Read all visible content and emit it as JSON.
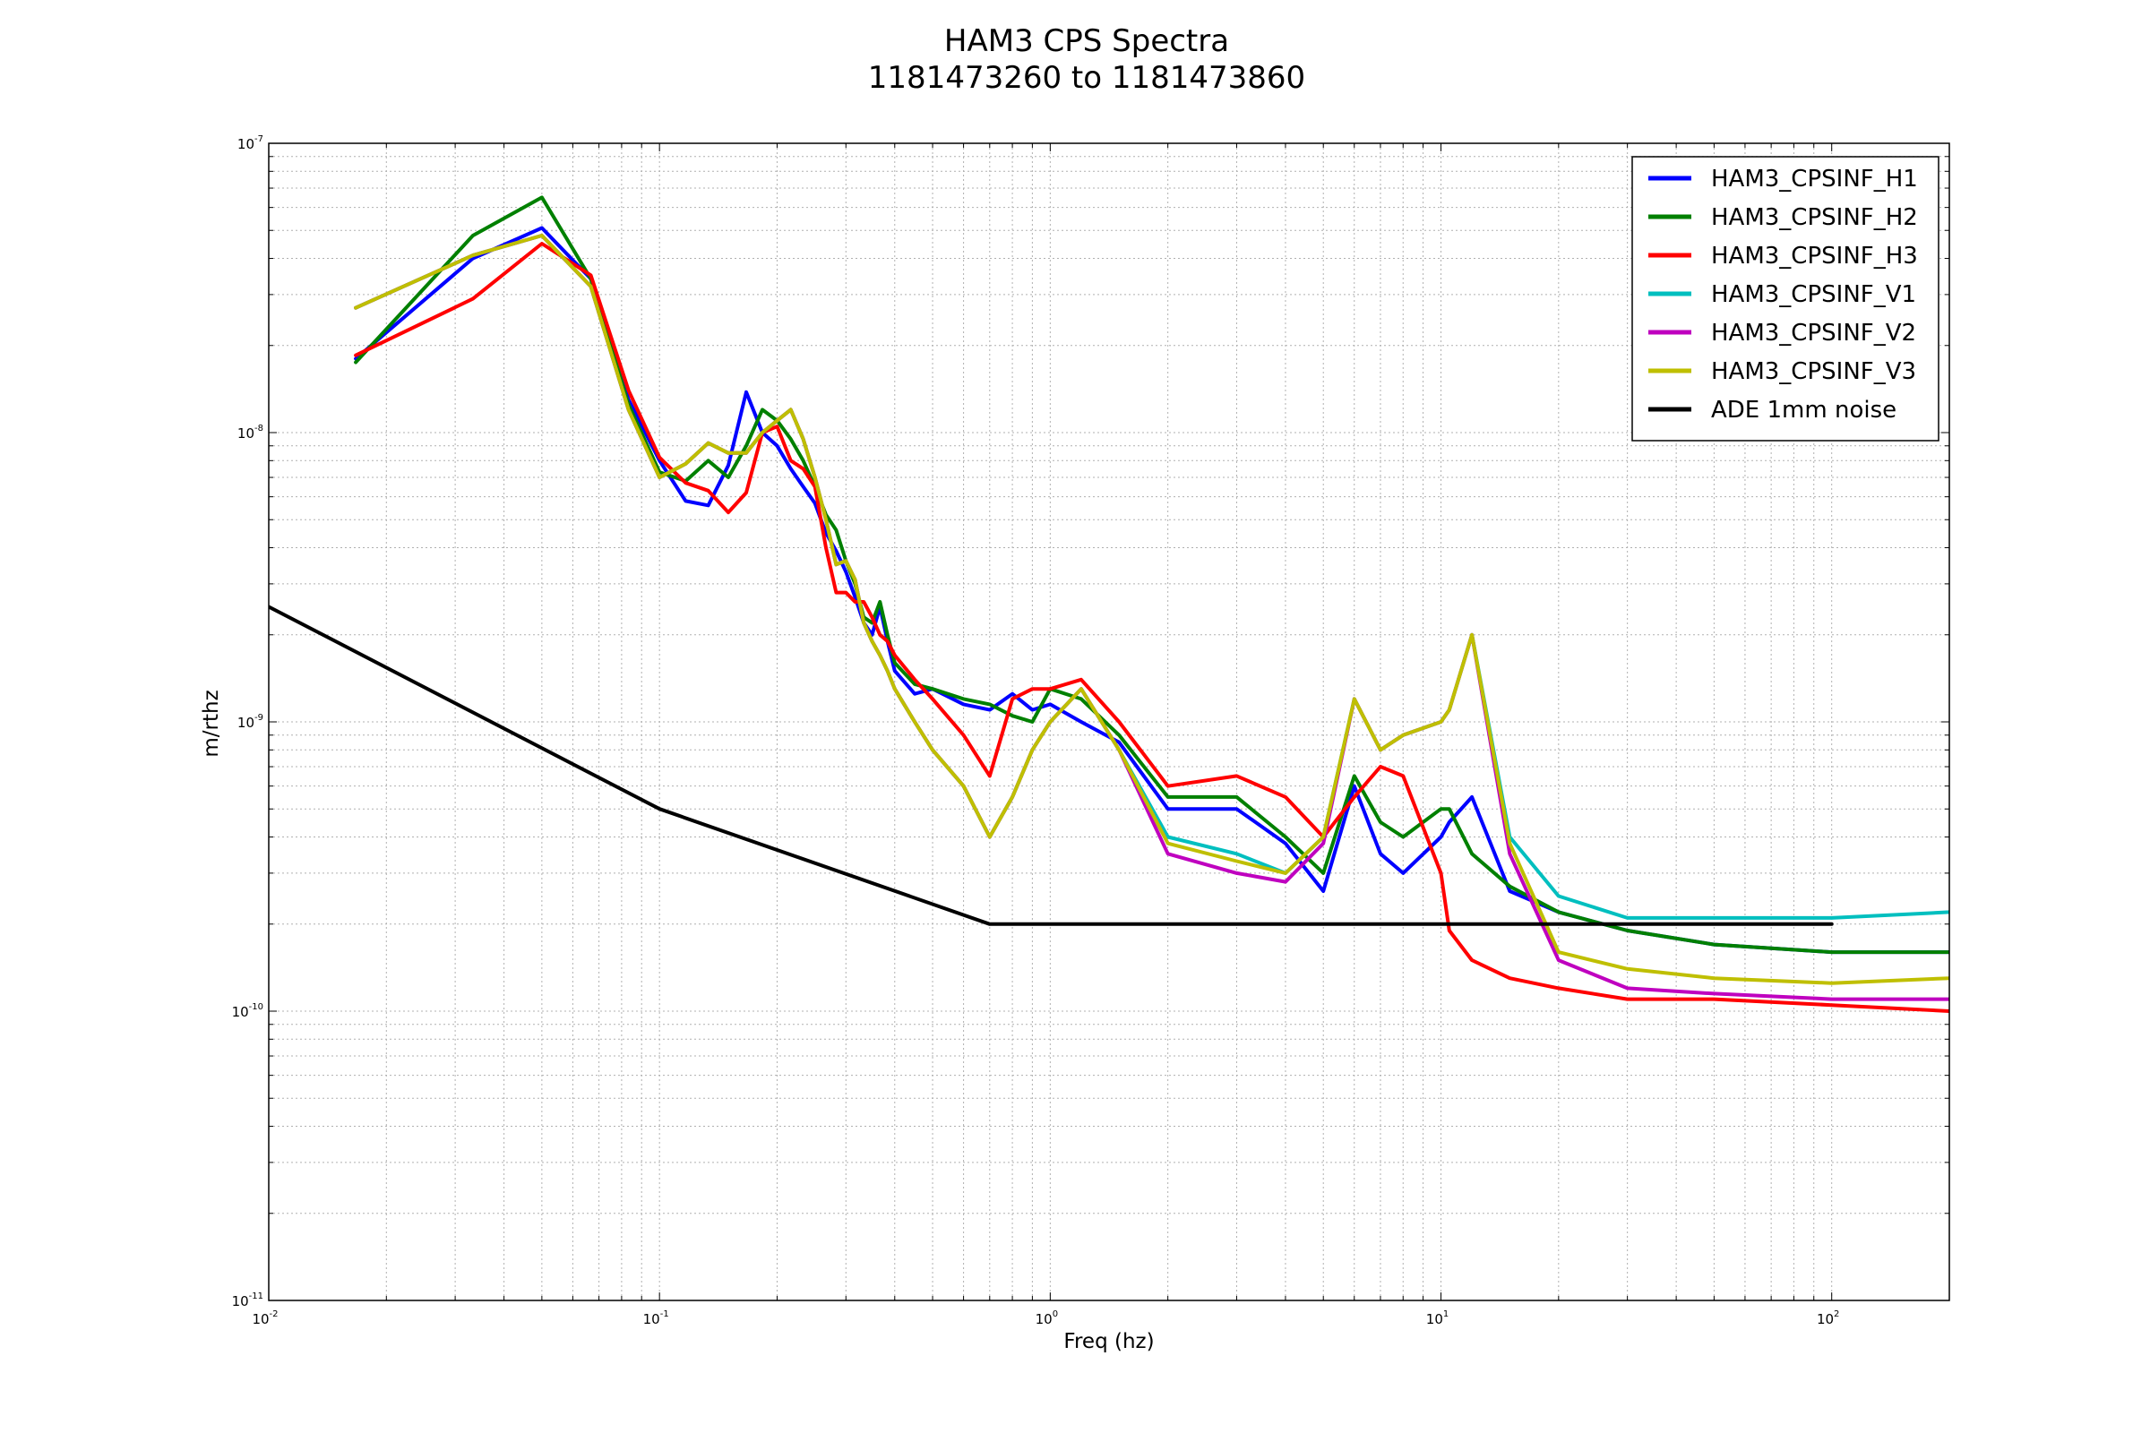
{
  "chart_data": {
    "type": "line",
    "title": "HAM3 CPS Spectra",
    "subtitle": "1181473260 to 1181473860",
    "xlabel": "Freq (hz)",
    "ylabel": "m/rthz",
    "xscale": "log",
    "yscale": "log",
    "xlim": [
      0.01,
      200
    ],
    "ylim": [
      1e-11,
      1e-07
    ],
    "grid": true,
    "legend_position": "top-right",
    "x_ticks": [
      {
        "base": "10",
        "exp": "-2",
        "value": 0.01
      },
      {
        "base": "10",
        "exp": "-1",
        "value": 0.1
      },
      {
        "base": "10",
        "exp": "0",
        "value": 1
      },
      {
        "base": "10",
        "exp": "1",
        "value": 10
      },
      {
        "base": "10",
        "exp": "2",
        "value": 100
      }
    ],
    "y_ticks": [
      {
        "base": "10",
        "exp": "-11",
        "value": 1e-11
      },
      {
        "base": "10",
        "exp": "-10",
        "value": 1e-10
      },
      {
        "base": "10",
        "exp": "-9",
        "value": 1e-09
      },
      {
        "base": "10",
        "exp": "-8",
        "value": 1e-08
      },
      {
        "base": "10",
        "exp": "-7",
        "value": 1e-07
      }
    ],
    "series": [
      {
        "name": "HAM3_CPSINF_H1",
        "color": "#0000ff",
        "x": [
          0.0167,
          0.0333,
          0.05,
          0.0667,
          0.0833,
          0.1,
          0.1167,
          0.1333,
          0.15,
          0.1667,
          0.1833,
          0.2,
          0.2167,
          0.2333,
          0.25,
          0.2667,
          0.2833,
          0.3,
          0.3167,
          0.3333,
          0.35,
          0.3667,
          0.3833,
          0.4,
          0.45,
          0.5,
          0.6,
          0.7,
          0.8,
          0.9,
          1.0,
          1.2,
          1.5,
          2.0,
          3.0,
          4.0,
          5.0,
          6.0,
          7.0,
          8.0,
          10.0,
          10.5,
          12.0,
          15.0,
          20.0,
          30.0,
          50.0,
          100.0,
          200.0
        ],
        "y": [
          1.8e-08,
          4e-08,
          5.1e-08,
          3.4e-08,
          1.3e-08,
          8e-09,
          5.8e-09,
          5.6e-09,
          7.7e-09,
          1.38e-08,
          1e-08,
          9e-09,
          7.5e-09,
          6.5e-09,
          5.7e-09,
          4.5e-09,
          3.9e-09,
          3.3e-09,
          2.7e-09,
          2.2e-09,
          2e-09,
          2.5e-09,
          1.9e-09,
          1.5e-09,
          1.25e-09,
          1.3e-09,
          1.15e-09,
          1.1e-09,
          1.25e-09,
          1.1e-09,
          1.15e-09,
          1e-09,
          8.5e-10,
          5e-10,
          5e-10,
          3.8e-10,
          2.6e-10,
          6e-10,
          3.5e-10,
          3e-10,
          4e-10,
          4.5e-10,
          5.5e-10,
          2.6e-10,
          2.2e-10,
          1.9e-10,
          1.7e-10,
          1.6e-10,
          1.6e-10
        ]
      },
      {
        "name": "HAM3_CPSINF_H2",
        "color": "#008000",
        "x": [
          0.0167,
          0.0333,
          0.05,
          0.0667,
          0.0833,
          0.1,
          0.1167,
          0.1333,
          0.15,
          0.1667,
          0.1833,
          0.2,
          0.2167,
          0.2333,
          0.25,
          0.2667,
          0.2833,
          0.3,
          0.3167,
          0.3333,
          0.35,
          0.3667,
          0.3833,
          0.4,
          0.45,
          0.5,
          0.6,
          0.7,
          0.8,
          0.9,
          1.0,
          1.2,
          1.5,
          2.0,
          3.0,
          4.0,
          5.0,
          6.0,
          7.0,
          8.0,
          10.0,
          10.5,
          12.0,
          15.0,
          20.0,
          30.0,
          50.0,
          100.0,
          200.0
        ],
        "y": [
          1.75e-08,
          4.8e-08,
          6.5e-08,
          3.4e-08,
          1.25e-08,
          7.3e-09,
          6.8e-09,
          8e-09,
          7e-09,
          9e-09,
          1.2e-08,
          1.1e-08,
          9.5e-09,
          8e-09,
          6.5e-09,
          5.2e-09,
          4.6e-09,
          3.6e-09,
          3e-09,
          2.3e-09,
          2.2e-09,
          2.6e-09,
          2e-09,
          1.6e-09,
          1.35e-09,
          1.3e-09,
          1.2e-09,
          1.15e-09,
          1.05e-09,
          1e-09,
          1.3e-09,
          1.2e-09,
          9e-10,
          5.5e-10,
          5.5e-10,
          4e-10,
          3e-10,
          6.5e-10,
          4.5e-10,
          4e-10,
          5e-10,
          5e-10,
          3.5e-10,
          2.7e-10,
          2.2e-10,
          1.9e-10,
          1.7e-10,
          1.6e-10,
          1.6e-10
        ]
      },
      {
        "name": "HAM3_CPSINF_H3",
        "color": "#ff0000",
        "x": [
          0.0167,
          0.0333,
          0.05,
          0.0667,
          0.0833,
          0.1,
          0.1167,
          0.1333,
          0.15,
          0.1667,
          0.1833,
          0.2,
          0.2167,
          0.2333,
          0.25,
          0.2667,
          0.2833,
          0.3,
          0.3167,
          0.3333,
          0.35,
          0.3667,
          0.3833,
          0.4,
          0.45,
          0.5,
          0.6,
          0.7,
          0.8,
          0.9,
          1.0,
          1.2,
          1.5,
          2.0,
          3.0,
          4.0,
          5.0,
          6.0,
          7.0,
          8.0,
          10.0,
          10.5,
          12.0,
          15.0,
          20.0,
          30.0,
          50.0,
          100.0,
          200.0
        ],
        "y": [
          1.85e-08,
          2.9e-08,
          4.5e-08,
          3.5e-08,
          1.4e-08,
          8.2e-09,
          6.7e-09,
          6.3e-09,
          5.3e-09,
          6.2e-09,
          1e-08,
          1.05e-08,
          8e-09,
          7.5e-09,
          6.5e-09,
          4e-09,
          2.8e-09,
          2.8e-09,
          2.6e-09,
          2.6e-09,
          2.3e-09,
          2e-09,
          1.9e-09,
          1.7e-09,
          1.4e-09,
          1.2e-09,
          9e-10,
          6.5e-10,
          1.2e-09,
          1.3e-09,
          1.3e-09,
          1.4e-09,
          1e-09,
          6e-10,
          6.5e-10,
          5.5e-10,
          4e-10,
          5.5e-10,
          7e-10,
          6.5e-10,
          3e-10,
          1.9e-10,
          1.5e-10,
          1.3e-10,
          1.2e-10,
          1.1e-10,
          1.1e-10,
          1.05e-10,
          1e-10
        ]
      },
      {
        "name": "HAM3_CPSINF_V1",
        "color": "#00bfbf",
        "x": [
          0.0167,
          0.0333,
          0.05,
          0.0667,
          0.0833,
          0.1,
          0.1167,
          0.1333,
          0.15,
          0.1667,
          0.1833,
          0.2,
          0.2167,
          0.2333,
          0.25,
          0.2667,
          0.2833,
          0.3,
          0.3167,
          0.3333,
          0.35,
          0.3667,
          0.3833,
          0.4,
          0.45,
          0.5,
          0.6,
          0.7,
          0.8,
          0.9,
          1.0,
          1.2,
          1.5,
          2.0,
          3.0,
          4.0,
          5.0,
          6.0,
          7.0,
          8.0,
          10.0,
          10.5,
          12.0,
          15.0,
          20.0,
          30.0,
          50.0,
          100.0,
          200.0
        ],
        "y": [
          2.7e-08,
          4.1e-08,
          4.8e-08,
          3.2e-08,
          1.2e-08,
          7e-09,
          7.8e-09,
          9.2e-09,
          8.5e-09,
          8.5e-09,
          1e-08,
          1.1e-08,
          1.2e-08,
          9.5e-09,
          7e-09,
          5e-09,
          3.5e-09,
          3.6e-09,
          3.1e-09,
          2.2e-09,
          1.9e-09,
          1.7e-09,
          1.5e-09,
          1.3e-09,
          1e-09,
          8e-10,
          6e-10,
          4e-10,
          5.5e-10,
          8e-10,
          1e-09,
          1.3e-09,
          8e-10,
          4e-10,
          3.5e-10,
          3e-10,
          4e-10,
          1.2e-09,
          8e-10,
          9e-10,
          1e-09,
          1.1e-09,
          2e-09,
          4e-10,
          2.5e-10,
          2.1e-10,
          2.1e-10,
          2.1e-10,
          2.2e-10
        ]
      },
      {
        "name": "HAM3_CPSINF_V2",
        "color": "#bf00bf",
        "x": [
          0.0167,
          0.0333,
          0.05,
          0.0667,
          0.0833,
          0.1,
          0.1167,
          0.1333,
          0.15,
          0.1667,
          0.1833,
          0.2,
          0.2167,
          0.2333,
          0.25,
          0.2667,
          0.2833,
          0.3,
          0.3167,
          0.3333,
          0.35,
          0.3667,
          0.3833,
          0.4,
          0.45,
          0.5,
          0.6,
          0.7,
          0.8,
          0.9,
          1.0,
          1.2,
          1.5,
          2.0,
          3.0,
          4.0,
          5.0,
          6.0,
          7.0,
          8.0,
          10.0,
          10.5,
          12.0,
          15.0,
          20.0,
          30.0,
          50.0,
          100.0,
          200.0
        ],
        "y": [
          2.7e-08,
          4.1e-08,
          4.8e-08,
          3.2e-08,
          1.2e-08,
          7e-09,
          7.8e-09,
          9.2e-09,
          8.5e-09,
          8.5e-09,
          1e-08,
          1.1e-08,
          1.2e-08,
          9.5e-09,
          7e-09,
          5e-09,
          3.5e-09,
          3.6e-09,
          3.1e-09,
          2.2e-09,
          1.9e-09,
          1.7e-09,
          1.5e-09,
          1.3e-09,
          1e-09,
          8e-10,
          6e-10,
          4e-10,
          5.5e-10,
          8e-10,
          1e-09,
          1.3e-09,
          8e-10,
          3.5e-10,
          3e-10,
          2.8e-10,
          3.8e-10,
          1.2e-09,
          8e-10,
          9e-10,
          1e-09,
          1.1e-09,
          2e-09,
          3.5e-10,
          1.5e-10,
          1.2e-10,
          1.15e-10,
          1.1e-10,
          1.1e-10
        ]
      },
      {
        "name": "HAM3_CPSINF_V3",
        "color": "#bfbf00",
        "x": [
          0.0167,
          0.0333,
          0.05,
          0.0667,
          0.0833,
          0.1,
          0.1167,
          0.1333,
          0.15,
          0.1667,
          0.1833,
          0.2,
          0.2167,
          0.2333,
          0.25,
          0.2667,
          0.2833,
          0.3,
          0.3167,
          0.3333,
          0.35,
          0.3667,
          0.3833,
          0.4,
          0.45,
          0.5,
          0.6,
          0.7,
          0.8,
          0.9,
          1.0,
          1.2,
          1.5,
          2.0,
          3.0,
          4.0,
          5.0,
          6.0,
          7.0,
          8.0,
          10.0,
          10.5,
          12.0,
          15.0,
          20.0,
          30.0,
          50.0,
          100.0,
          200.0
        ],
        "y": [
          2.7e-08,
          4.1e-08,
          4.8e-08,
          3.2e-08,
          1.2e-08,
          7e-09,
          7.8e-09,
          9.2e-09,
          8.5e-09,
          8.5e-09,
          1e-08,
          1.1e-08,
          1.2e-08,
          9.5e-09,
          7e-09,
          5e-09,
          3.5e-09,
          3.6e-09,
          3.1e-09,
          2.2e-09,
          1.9e-09,
          1.7e-09,
          1.5e-09,
          1.3e-09,
          1e-09,
          8e-10,
          6e-10,
          4e-10,
          5.5e-10,
          8e-10,
          1e-09,
          1.3e-09,
          8e-10,
          3.8e-10,
          3.3e-10,
          3e-10,
          4e-10,
          1.2e-09,
          8e-10,
          9e-10,
          1e-09,
          1.1e-09,
          2e-09,
          3.8e-10,
          1.6e-10,
          1.4e-10,
          1.3e-10,
          1.25e-10,
          1.3e-10
        ]
      },
      {
        "name": "ADE 1mm noise",
        "color": "#000000",
        "x": [
          0.01,
          0.1,
          0.7,
          100.0
        ],
        "y": [
          2.5e-09,
          5e-10,
          2e-10,
          2e-10
        ]
      }
    ]
  }
}
